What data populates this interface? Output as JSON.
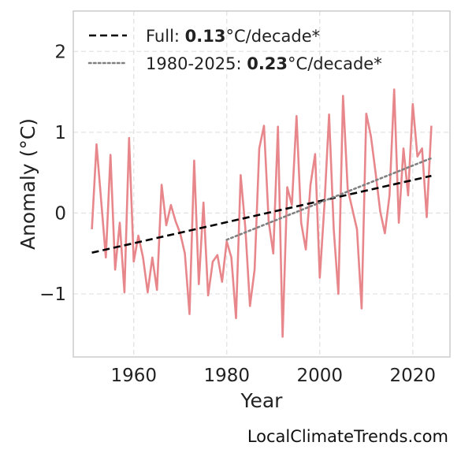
{
  "chart_data": {
    "type": "line",
    "xlabel": "Year",
    "ylabel": "Anomaly (°C)",
    "xlim": [
      1947,
      2028
    ],
    "ylim": [
      -1.78,
      2.5
    ],
    "xticks": [
      "1960",
      "1980",
      "2000",
      "2020"
    ],
    "xtick_values": [
      1960,
      1980,
      2000,
      2020
    ],
    "yticks": [
      "−1",
      "0",
      "1",
      "2"
    ],
    "ytick_values": [
      -1,
      0,
      1,
      2
    ],
    "grid": true,
    "legend_position": "top-left",
    "series": [
      {
        "color": "#e8878b",
        "style": "solid",
        "x": [
          1951,
          1952,
          1953,
          1954,
          1955,
          1956,
          1957,
          1958,
          1959,
          1960,
          1961,
          1962,
          1963,
          1964,
          1965,
          1966,
          1967,
          1968,
          1969,
          1970,
          1971,
          1972,
          1973,
          1974,
          1975,
          1976,
          1977,
          1978,
          1979,
          1980,
          1981,
          1982,
          1983,
          1984,
          1985,
          1986,
          1987,
          1988,
          1989,
          1990,
          1991,
          1992,
          1993,
          1994,
          1995,
          1996,
          1997,
          1998,
          1999,
          2000,
          2001,
          2002,
          2003,
          2004,
          2005,
          2006,
          2007,
          2008,
          2009,
          2010,
          2011,
          2012,
          2013,
          2014,
          2015,
          2016,
          2017,
          2018,
          2019,
          2020,
          2021,
          2022,
          2023,
          2024
        ],
        "values": [
          -0.2,
          0.85,
          0.15,
          -0.55,
          0.72,
          -0.7,
          -0.12,
          -0.98,
          0.93,
          -0.6,
          -0.28,
          -0.55,
          -0.98,
          -0.55,
          -0.95,
          0.35,
          -0.15,
          0.1,
          -0.1,
          -0.25,
          -0.5,
          -1.25,
          0.65,
          -0.88,
          0.13,
          -1.02,
          -0.6,
          -0.52,
          -0.85,
          -0.35,
          -0.55,
          -1.3,
          0.47,
          -0.18,
          -1.15,
          -0.7,
          0.8,
          1.08,
          -0.1,
          -0.5,
          1.07,
          -1.53,
          0.32,
          0.1,
          1.2,
          -0.12,
          -0.45,
          0.35,
          0.73,
          -0.8,
          0.1,
          1.22,
          -0.2,
          -1.0,
          1.45,
          0.3,
          0.05,
          -0.2,
          -1.18,
          1.23,
          0.95,
          0.5,
          0.02,
          -0.25,
          0.22,
          1.53,
          -0.12,
          0.8,
          0.22,
          1.35,
          0.7,
          0.8,
          -0.05,
          1.08
        ]
      },
      {
        "name": "Full",
        "color": "#000000",
        "style": "dashed",
        "x": [
          1951,
          2024
        ],
        "values": [
          -0.49,
          0.46
        ]
      },
      {
        "name": "1980-2025",
        "color": "#808080",
        "style": "dotted",
        "x": [
          1980,
          2024
        ],
        "values": [
          -0.33,
          0.68
        ]
      }
    ],
    "legend": [
      {
        "prefix": "Full: ",
        "value": "0.13",
        "suffix": "°C/decade*",
        "color": "#000000",
        "style": "dashed"
      },
      {
        "prefix": "1980-2025: ",
        "value": "0.23",
        "suffix": "°C/decade*",
        "color": "#808080",
        "style": "dotted"
      }
    ]
  },
  "credit": "LocalClimateTrends.com"
}
